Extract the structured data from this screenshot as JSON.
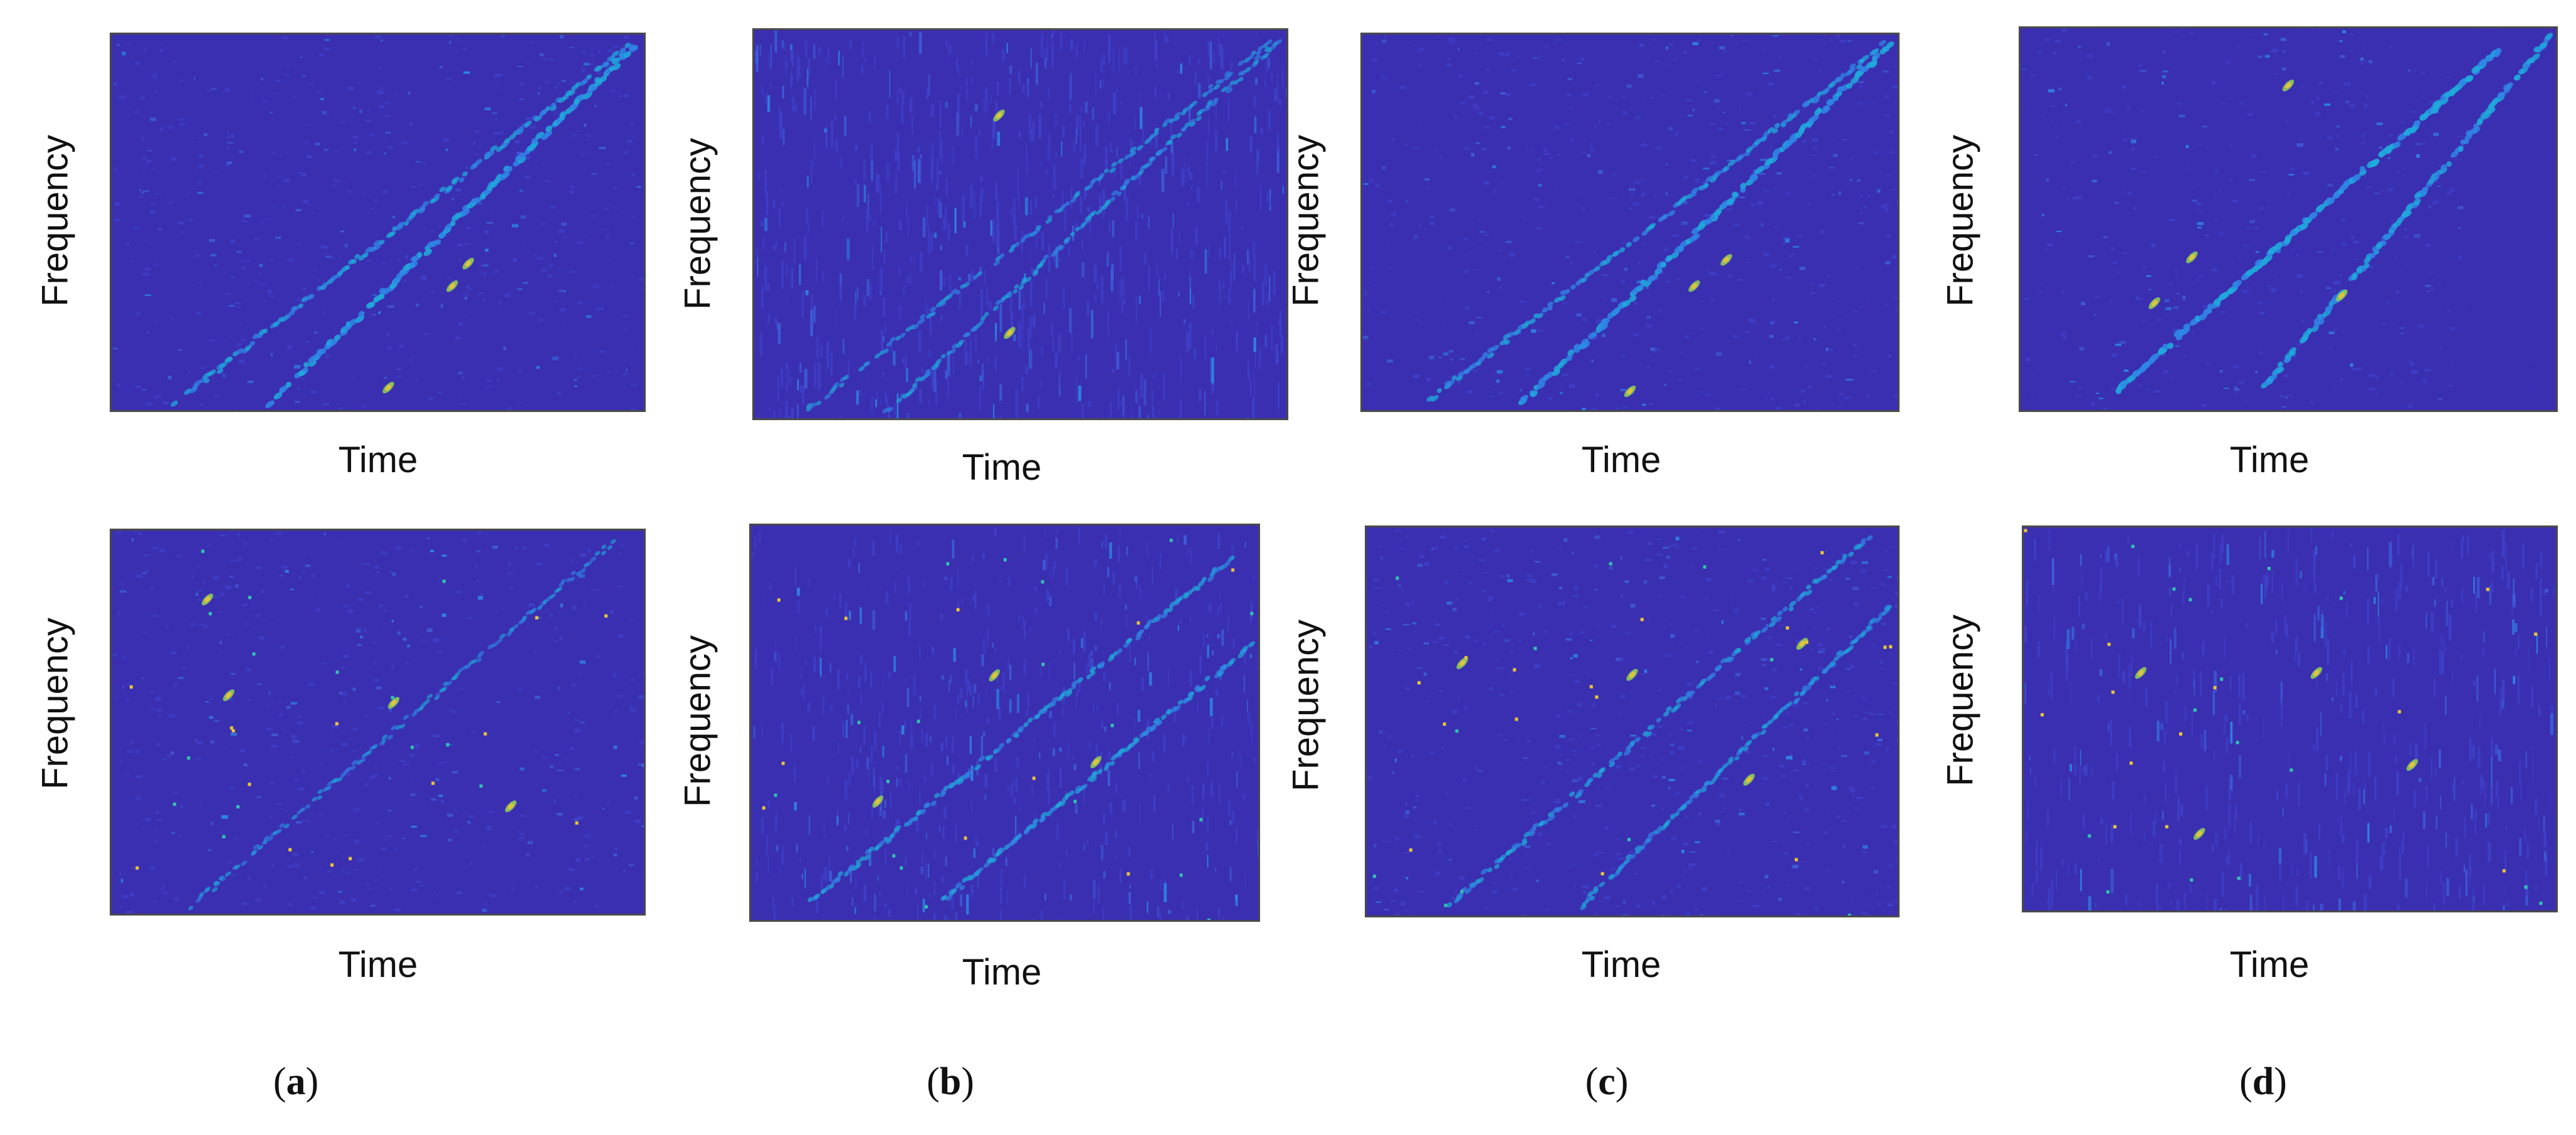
{
  "chart_data": [
    {
      "type": "heatmap",
      "variant": "a",
      "row": "top",
      "xlabel": "Time",
      "ylabel": "Frequency",
      "colormap": "parula",
      "lines": [
        {
          "x0": 0.12,
          "y0": 0.02,
          "x1": 0.98,
          "y1": 0.98,
          "w": 0.6
        },
        {
          "x0": 0.3,
          "y0": 0.02,
          "x1": 0.99,
          "y1": 0.98,
          "w": 0.9
        }
      ],
      "hot": [
        [
          0.52,
          0.06
        ],
        [
          0.64,
          0.33
        ],
        [
          0.67,
          0.39
        ]
      ],
      "noise": 0.55
    },
    {
      "type": "heatmap",
      "variant": "b",
      "row": "top",
      "xlabel": "Time",
      "ylabel": "Frequency",
      "colormap": "parula",
      "lines": [
        {
          "x0": 0.1,
          "y0": 0.02,
          "x1": 0.98,
          "y1": 0.98,
          "w": 0.4
        },
        {
          "x0": 0.25,
          "y0": 0.02,
          "x1": 0.99,
          "y1": 0.98,
          "w": 0.4
        }
      ],
      "hot": [
        [
          0.48,
          0.22
        ],
        [
          0.46,
          0.78
        ]
      ],
      "noise": 0.8,
      "vertical": true
    },
    {
      "type": "heatmap",
      "variant": "c",
      "row": "top",
      "xlabel": "Time",
      "ylabel": "Frequency",
      "colormap": "parula",
      "lines": [
        {
          "x0": 0.12,
          "y0": 0.02,
          "x1": 0.98,
          "y1": 0.98,
          "w": 0.6
        },
        {
          "x0": 0.3,
          "y0": 0.02,
          "x1": 0.99,
          "y1": 0.98,
          "w": 0.9
        }
      ],
      "hot": [
        [
          0.5,
          0.05
        ],
        [
          0.62,
          0.33
        ],
        [
          0.68,
          0.4
        ]
      ],
      "noise": 0.55
    },
    {
      "type": "heatmap",
      "variant": "d",
      "row": "top",
      "xlabel": "Time",
      "ylabel": "Frequency",
      "colormap": "parula",
      "lines": [
        {
          "x0": 0.18,
          "y0": 0.05,
          "x1": 0.9,
          "y1": 0.95,
          "w": 1.0
        },
        {
          "x0": 0.45,
          "y0": 0.05,
          "x1": 0.99,
          "y1": 0.98,
          "w": 0.8
        }
      ],
      "hot": [
        [
          0.25,
          0.28
        ],
        [
          0.32,
          0.4
        ],
        [
          0.6,
          0.3
        ],
        [
          0.5,
          0.85
        ]
      ],
      "noise": 0.5,
      "fade": true
    },
    {
      "type": "heatmap",
      "variant": "a",
      "row": "bottom",
      "xlabel": "Time",
      "ylabel": "Frequency",
      "colormap": "parula",
      "lines": [
        {
          "x0": 0.15,
          "y0": 0.02,
          "x1": 0.95,
          "y1": 0.98,
          "w": 0.3
        }
      ],
      "hot": [
        [
          0.18,
          0.82
        ],
        [
          0.53,
          0.55
        ],
        [
          0.75,
          0.28
        ],
        [
          0.22,
          0.57
        ]
      ],
      "noise": 0.65,
      "sparse": true
    },
    {
      "type": "heatmap",
      "variant": "b",
      "row": "bottom",
      "xlabel": "Time",
      "ylabel": "Frequency",
      "colormap": "parula",
      "lines": [
        {
          "x0": 0.12,
          "y0": 0.05,
          "x1": 0.95,
          "y1": 0.92,
          "w": 0.5
        },
        {
          "x0": 0.38,
          "y0": 0.05,
          "x1": 0.99,
          "y1": 0.7,
          "w": 0.5
        }
      ],
      "hot": [
        [
          0.48,
          0.62
        ],
        [
          0.25,
          0.3
        ],
        [
          0.68,
          0.4
        ]
      ],
      "noise": 0.6,
      "blocky": true
    },
    {
      "type": "heatmap",
      "variant": "c",
      "row": "bottom",
      "xlabel": "Time",
      "ylabel": "Frequency",
      "colormap": "parula",
      "lines": [
        {
          "x0": 0.15,
          "y0": 0.02,
          "x1": 0.95,
          "y1": 0.98,
          "w": 0.5
        },
        {
          "x0": 0.4,
          "y0": 0.02,
          "x1": 0.99,
          "y1": 0.8,
          "w": 0.4
        }
      ],
      "hot": [
        [
          0.18,
          0.65
        ],
        [
          0.5,
          0.62
        ],
        [
          0.82,
          0.7
        ],
        [
          0.72,
          0.35
        ]
      ],
      "noise": 0.75,
      "sparse": true
    },
    {
      "type": "heatmap",
      "variant": "d",
      "row": "bottom",
      "xlabel": "Time",
      "ylabel": "Frequency",
      "colormap": "parula",
      "lines": [],
      "hot": [
        [
          0.22,
          0.62
        ],
        [
          0.55,
          0.62
        ],
        [
          0.73,
          0.38
        ],
        [
          0.33,
          0.2
        ]
      ],
      "noise": 0.7,
      "sparse": true,
      "vertical": true
    }
  ],
  "captions": [
    "(a)",
    "(b)",
    "(c)",
    "(d)"
  ]
}
